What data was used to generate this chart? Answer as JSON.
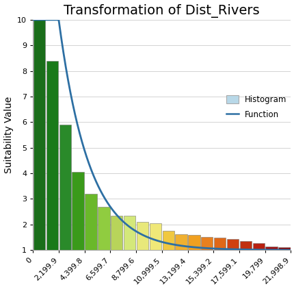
{
  "title": "Transformation of Dist_Rivers",
  "ylabel": "Suitability Value",
  "xlim": [
    0,
    21998.9
  ],
  "ylim": [
    1,
    10
  ],
  "yticks": [
    1,
    2,
    3,
    4,
    5,
    6,
    7,
    8,
    9,
    10
  ],
  "xtick_labels": [
    "0",
    "2,199.9",
    "4,399.8",
    "6,599.7",
    "8,799.6",
    "10,999.5",
    "13,199.4",
    "15,399.2",
    "17,599.1",
    "19,799",
    "21,998.9"
  ],
  "xtick_positions": [
    0,
    2199.9,
    4399.8,
    6599.7,
    8799.6,
    10999.5,
    13199.4,
    15399.2,
    17599.1,
    19799,
    21998.9
  ],
  "bar_left_edges": [
    0,
    1099.95,
    2199.9,
    3299.85,
    4399.8,
    5499.75,
    6599.7,
    7699.65,
    8799.6,
    9899.55,
    10999.5,
    12099.45,
    13199.4,
    14299.35,
    15399.2,
    16499.15,
    17599.1,
    18699.05,
    19799,
    20898.95
  ],
  "bar_width": 1099.95,
  "bar_heights": [
    10.0,
    8.4,
    5.9,
    4.05,
    3.2,
    2.7,
    2.35,
    2.35,
    2.1,
    2.05,
    1.75,
    1.62,
    1.6,
    1.5,
    1.48,
    1.42,
    1.35,
    1.28,
    1.15,
    1.1
  ],
  "bar_colors": [
    "#1a6e1a",
    "#1a7a1a",
    "#2a8a2a",
    "#3a9a1a",
    "#6ab82a",
    "#90cc40",
    "#b8d45a",
    "#d4e87a",
    "#e8e87a",
    "#f0e878",
    "#f0c840",
    "#f0b030",
    "#f0a020",
    "#e88020",
    "#e06818",
    "#d04010",
    "#c03010",
    "#b82010",
    "#a01010",
    "#900808"
  ],
  "curve_color": "#2d6fa3",
  "curve_lw": 2.0,
  "background_color": "#ffffff",
  "grid_color": "#cccccc",
  "title_fontsize": 14,
  "axis_label_fontsize": 10,
  "tick_fontsize": 8,
  "legend_hist_color": "#b8d8e8",
  "legend_func_color": "#2d6fa3",
  "bar_edgecolor": "#777777",
  "bar_edgewidth": 0.4,
  "curve_x_start": 0,
  "curve_x_flat_end": 2199.9,
  "curve_k": 0.00038,
  "curve_amplitude": 9.0,
  "curve_base": 1.0
}
